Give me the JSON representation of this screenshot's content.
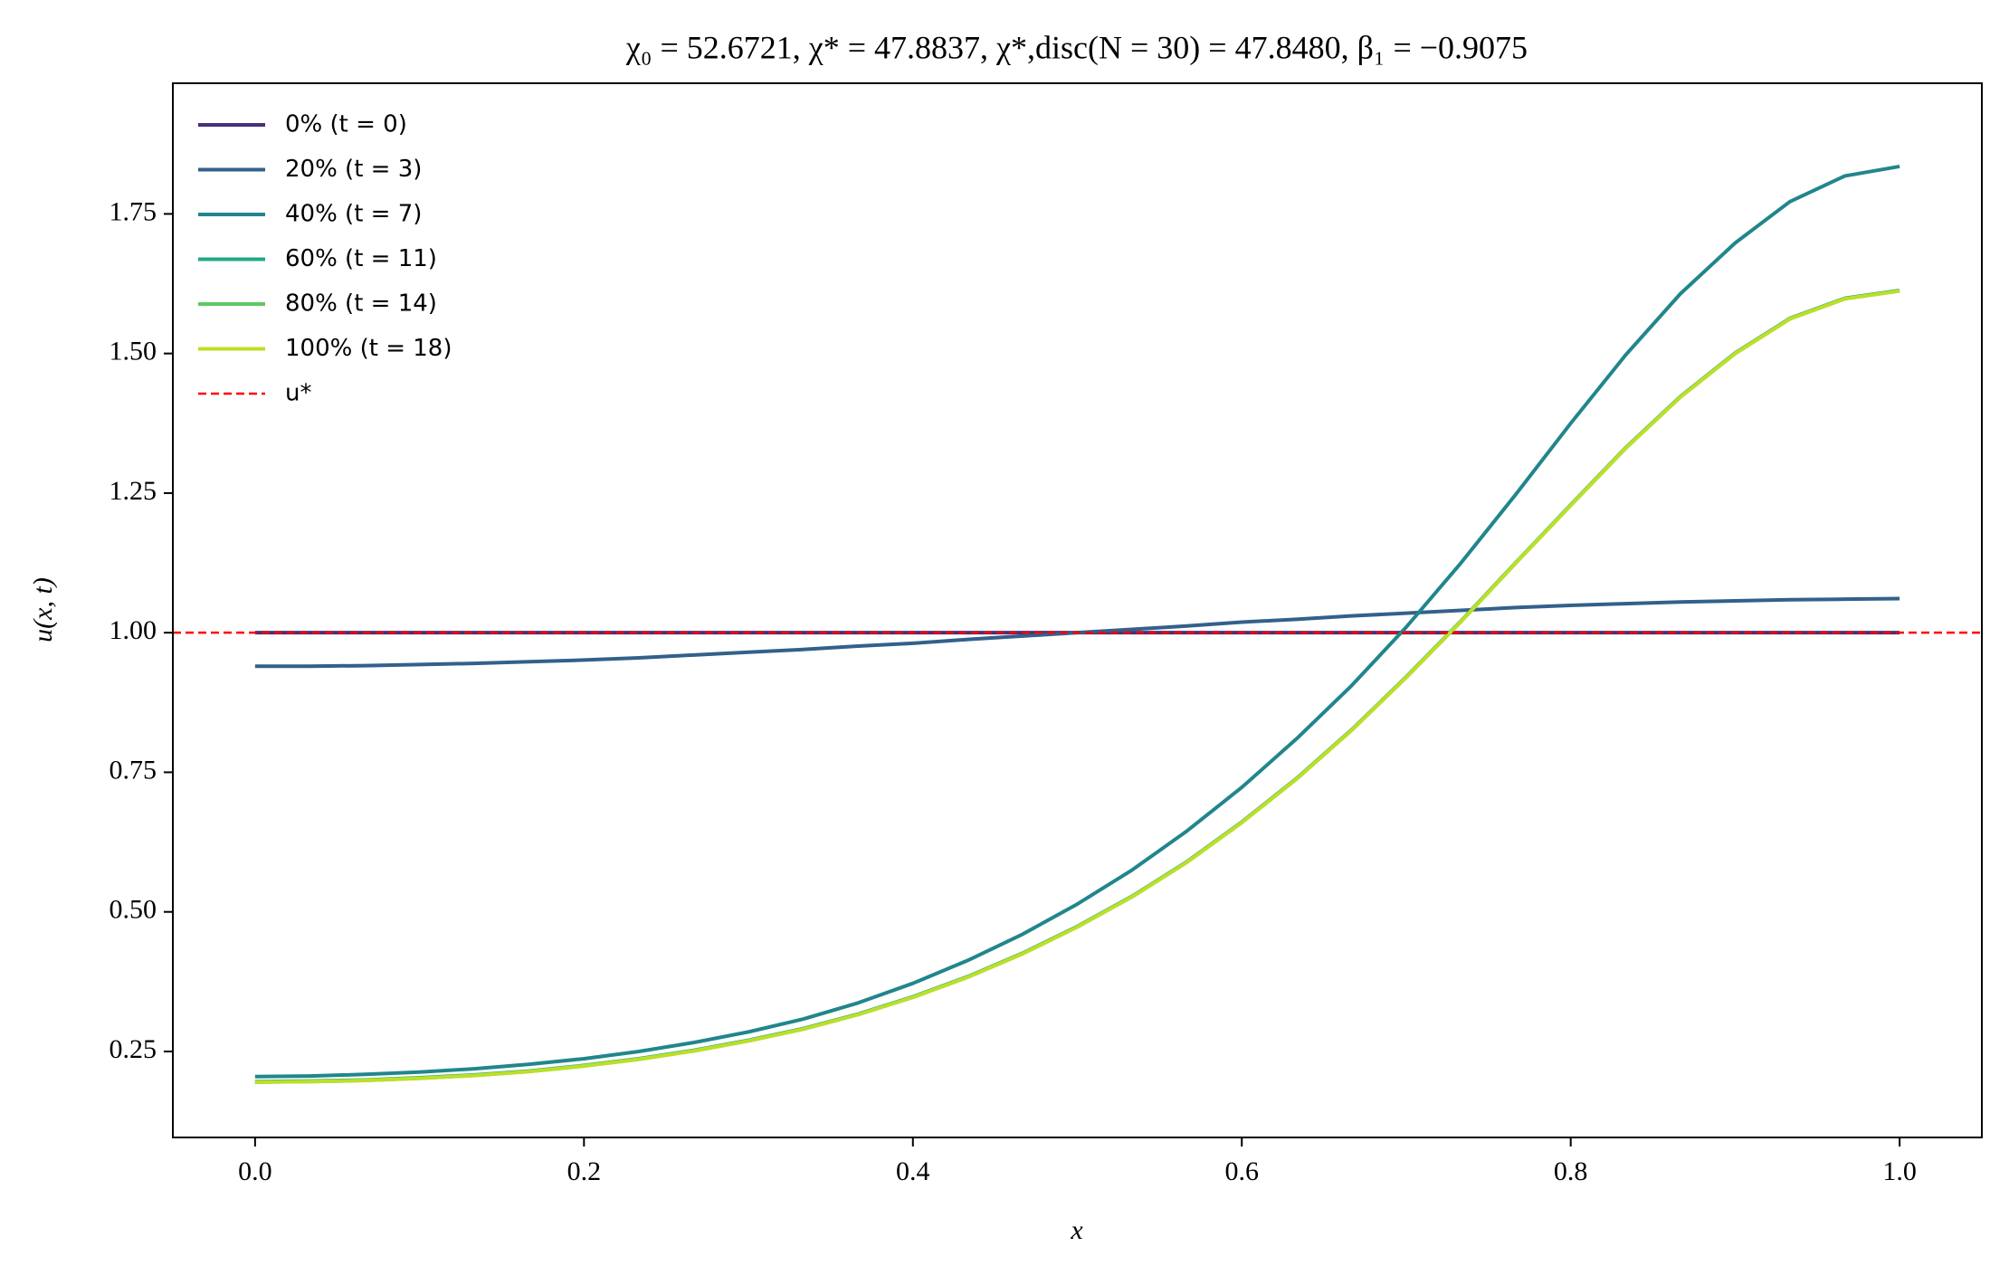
{
  "chart_data": {
    "type": "line",
    "title": "χ₀ = 52.6721,  χ* = 47.8837,  χ*,disc(N = 30) = 47.8480,  β₁ = −0.9075",
    "x_label": "x",
    "y_label": "u(x, t)",
    "x": [
      0,
      0.0333,
      0.0667,
      0.1,
      0.1333,
      0.1667,
      0.2,
      0.2333,
      0.2667,
      0.3,
      0.3333,
      0.3667,
      0.4,
      0.4333,
      0.4667,
      0.5,
      0.5333,
      0.5667,
      0.6,
      0.6333,
      0.6667,
      0.7,
      0.7333,
      0.7667,
      0.8,
      0.8333,
      0.8667,
      0.9,
      0.9333,
      0.9667,
      1
    ],
    "series": [
      {
        "name": "0% (t = 0)",
        "color": "#46307a",
        "values": [
          1,
          1,
          1,
          1,
          1,
          1,
          1,
          1,
          1,
          1,
          1,
          1,
          1,
          1,
          1,
          1,
          1,
          1,
          1,
          1,
          1,
          1,
          1,
          1,
          1,
          1,
          1,
          1,
          1,
          1,
          1
        ]
      },
      {
        "name": "20% (t = 3)",
        "color": "#33608c",
        "values": [
          0.94,
          0.94,
          0.941,
          0.943,
          0.945,
          0.948,
          0.951,
          0.955,
          0.96,
          0.965,
          0.97,
          0.976,
          0.981,
          0.988,
          0.994,
          1,
          1.006,
          1.012,
          1.019,
          1.024,
          1.03,
          1.035,
          1.04,
          1.045,
          1.049,
          1.052,
          1.055,
          1.057,
          1.059,
          1.06,
          1.061
        ]
      },
      {
        "name": "40% (t = 7)",
        "color": "#21868c",
        "values": [
          0.205,
          0.206,
          0.209,
          0.213,
          0.219,
          0.227,
          0.237,
          0.25,
          0.266,
          0.285,
          0.308,
          0.337,
          0.372,
          0.413,
          0.46,
          0.514,
          0.575,
          0.645,
          0.723,
          0.81,
          0.905,
          1.01,
          1.125,
          1.248,
          1.375,
          1.497,
          1.607,
          1.698,
          1.772,
          1.818,
          1.835
        ]
      },
      {
        "name": "60% (t = 11)",
        "color": "#22a884",
        "values": [
          0.196,
          0.197,
          0.199,
          0.203,
          0.208,
          0.215,
          0.225,
          0.237,
          0.252,
          0.27,
          0.291,
          0.317,
          0.348,
          0.384,
          0.426,
          0.474,
          0.528,
          0.59,
          0.661,
          0.739,
          0.826,
          0.921,
          1.021,
          1.126,
          1.229,
          1.331,
          1.423,
          1.501,
          1.563,
          1.599,
          1.613
        ]
      },
      {
        "name": "80% (t = 14)",
        "color": "#5ec962",
        "values": [
          0.195,
          0.196,
          0.198,
          0.202,
          0.207,
          0.214,
          0.224,
          0.236,
          0.251,
          0.269,
          0.29,
          0.316,
          0.347,
          0.383,
          0.425,
          0.473,
          0.527,
          0.589,
          0.66,
          0.738,
          0.825,
          0.92,
          1.02,
          1.125,
          1.228,
          1.33,
          1.422,
          1.5,
          1.562,
          1.598,
          1.612
        ]
      },
      {
        "name": "100% (t = 18)",
        "color": "#bddf26",
        "values": [
          0.195,
          0.196,
          0.198,
          0.202,
          0.207,
          0.214,
          0.224,
          0.236,
          0.251,
          0.269,
          0.29,
          0.316,
          0.347,
          0.383,
          0.425,
          0.473,
          0.527,
          0.589,
          0.66,
          0.738,
          0.825,
          0.92,
          1.02,
          1.125,
          1.228,
          1.33,
          1.422,
          1.5,
          1.562,
          1.598,
          1.612
        ]
      }
    ],
    "reference_line": {
      "name": "u*",
      "y": 1,
      "color": "#ff0000",
      "style": "dashed"
    },
    "xlim": [
      -0.05,
      1.05
    ],
    "ylim": [
      0.096,
      1.984
    ],
    "xticks": [
      {
        "value": 0,
        "label": "0.0"
      },
      0.2,
      0.4,
      0.6,
      0.8,
      {
        "value": 1,
        "label": "1.0"
      }
    ],
    "yticks": [
      0.25,
      {
        "value": 0.5,
        "label": "0.50"
      },
      0.75,
      {
        "value": 1,
        "label": "1.00"
      },
      1.25,
      {
        "value": 1.5,
        "label": "1.50"
      },
      1.75
    ],
    "grid": false,
    "legend": "upper left"
  }
}
